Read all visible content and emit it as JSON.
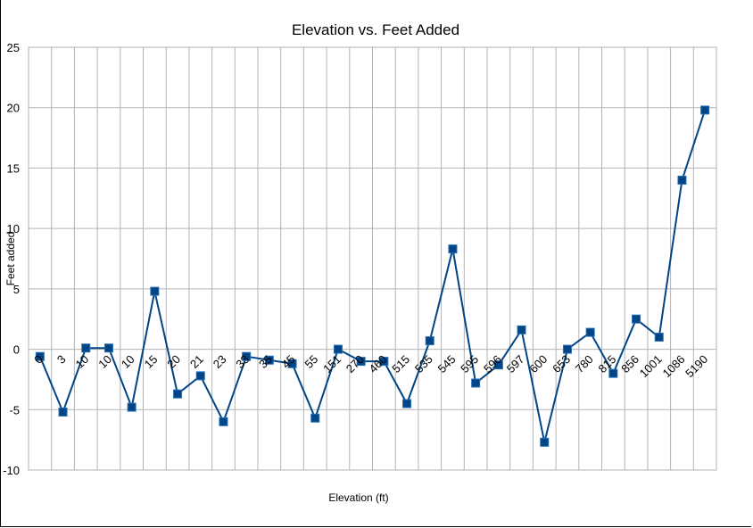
{
  "chart_data": {
    "type": "line",
    "title": "Elevation vs. Feet Added",
    "xlabel": "Elevation (ft)",
    "ylabel": "Feet added",
    "categories": [
      "0",
      "3",
      "10",
      "10",
      "10",
      "15",
      "20",
      "21",
      "23",
      "33",
      "35",
      "45",
      "55",
      "151",
      "270",
      "460",
      "515",
      "535",
      "545",
      "595",
      "596",
      "597",
      "600",
      "653",
      "780",
      "815",
      "856",
      "1001",
      "1086",
      "5190"
    ],
    "series": [
      {
        "name": "",
        "values": [
          -0.6,
          -5.2,
          0.1,
          0.1,
          -4.8,
          4.8,
          -3.7,
          -2.2,
          -6.0,
          -0.6,
          -0.9,
          -1.2,
          -5.7,
          0.0,
          -1.0,
          -1.0,
          -4.5,
          0.7,
          8.3,
          -2.8,
          -1.3,
          1.6,
          -7.7,
          0.0,
          1.4,
          -2.0,
          2.5,
          1.0,
          14.0,
          19.8
        ],
        "color": "#004586"
      }
    ],
    "ylim": [
      -10,
      25
    ],
    "yticks": [
      -10,
      -5,
      0,
      5,
      10,
      15,
      20,
      25
    ],
    "grid": true,
    "legend": "none"
  }
}
